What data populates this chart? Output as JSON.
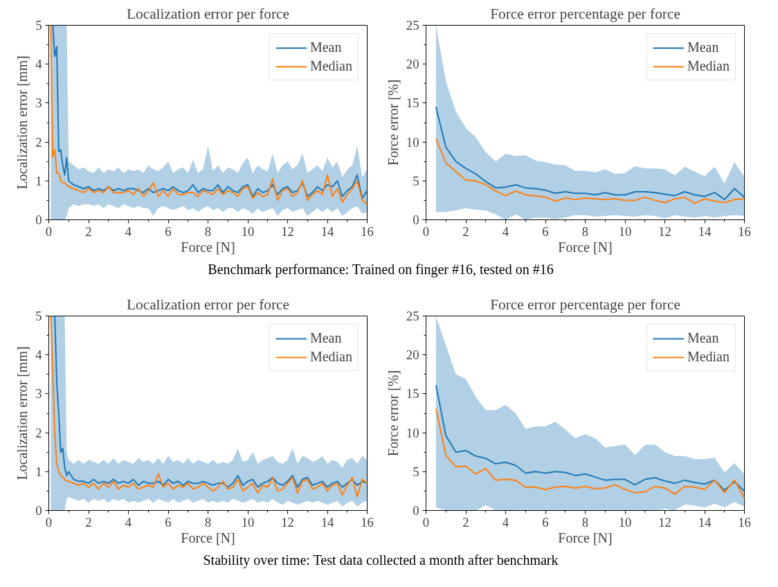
{
  "chart_data": [
    {
      "type": "line",
      "title": "Localization error per force",
      "xlabel": "Force [N]",
      "ylabel": "Localization error [mm]",
      "xlim": [
        0,
        16
      ],
      "xticks": [
        0,
        2,
        4,
        6,
        8,
        10,
        12,
        14,
        16
      ],
      "ylim": [
        0,
        5
      ],
      "yticks": [
        0,
        1,
        2,
        3,
        4,
        5
      ],
      "grid": false,
      "legend": "top right",
      "annotations": [
        "Benchmark performance: Trained on finger #16, tested on #16"
      ],
      "x": [
        0.1,
        0.2,
        0.3,
        0.4,
        0.5,
        0.6,
        0.7,
        0.8,
        0.9,
        1.0,
        1.25,
        1.5,
        1.75,
        2.0,
        2.25,
        2.5,
        2.75,
        3.0,
        3.25,
        3.5,
        3.75,
        4.0,
        4.25,
        4.5,
        4.75,
        5.0,
        5.25,
        5.5,
        5.75,
        6.0,
        6.25,
        6.5,
        6.75,
        7.0,
        7.25,
        7.5,
        7.75,
        8.0,
        8.25,
        8.5,
        8.75,
        9.0,
        9.25,
        9.5,
        9.75,
        10.0,
        10.25,
        10.5,
        10.75,
        11.0,
        11.25,
        11.5,
        11.75,
        12.0,
        12.25,
        12.5,
        12.75,
        13.0,
        13.25,
        13.5,
        13.75,
        14.0,
        14.25,
        14.5,
        14.75,
        15.0,
        15.25,
        15.5,
        15.75,
        16.0
      ],
      "series": [
        {
          "name": "Mean",
          "color": "#1f77b4",
          "values": [
            5,
            5,
            4.2,
            4.45,
            1.75,
            1.8,
            1.4,
            1.15,
            1.6,
            1.0,
            0.9,
            0.85,
            0.8,
            0.85,
            0.75,
            0.8,
            0.75,
            0.85,
            0.75,
            0.8,
            0.75,
            0.8,
            0.8,
            0.75,
            0.7,
            0.8,
            0.7,
            0.75,
            0.8,
            0.75,
            0.85,
            0.75,
            0.7,
            0.75,
            0.9,
            0.7,
            0.8,
            0.75,
            0.75,
            0.9,
            0.7,
            0.85,
            0.75,
            0.7,
            0.85,
            0.9,
            0.6,
            0.8,
            0.7,
            0.75,
            0.9,
            0.65,
            0.8,
            0.85,
            0.7,
            0.75,
            0.95,
            0.6,
            0.7,
            0.85,
            0.75,
            0.9,
            0.85,
            1.0,
            0.6,
            0.75,
            0.85,
            1.15,
            0.55,
            0.75
          ],
          "lower": [
            0,
            0,
            0,
            0,
            0,
            0,
            0,
            0,
            0.1,
            0.3,
            0.4,
            0.35,
            0.4,
            0.4,
            0.35,
            0.4,
            0.3,
            0.4,
            0.35,
            0.3,
            0.4,
            0.35,
            0.3,
            0.35,
            0.3,
            0.3,
            0.1,
            0.3,
            0.35,
            0.3,
            0.25,
            0.3,
            0.35,
            0.25,
            0.3,
            0.2,
            0.3,
            0.35,
            0.25,
            0.3,
            0.2,
            0.3,
            0.3,
            0.2,
            0.3,
            0.25,
            0.15,
            0.3,
            0.2,
            0.25,
            0.3,
            0.1,
            0.25,
            0.3,
            0.2,
            0.25,
            0.3,
            0.1,
            0.2,
            0.3,
            0.2,
            0.3,
            0.2,
            0.3,
            0.1,
            0.2,
            0.3,
            0.35,
            0.15,
            0.2
          ],
          "upper": [
            5,
            5,
            5,
            5,
            5,
            5,
            5,
            5,
            5,
            1.5,
            1.4,
            1.3,
            1.35,
            1.25,
            1.2,
            1.35,
            1.2,
            1.3,
            1.25,
            1.35,
            1.2,
            1.3,
            1.25,
            1.3,
            1.2,
            1.4,
            1.3,
            1.25,
            1.35,
            1.5,
            1.2,
            1.3,
            1.35,
            1.2,
            1.55,
            1.2,
            1.3,
            1.9,
            1.25,
            1.4,
            1.2,
            1.35,
            1.3,
            1.2,
            1.45,
            1.6,
            1.2,
            1.4,
            1.3,
            1.25,
            1.7,
            1.2,
            1.4,
            1.5,
            1.3,
            1.4,
            1.7,
            1.2,
            1.3,
            1.4,
            1.25,
            1.6,
            1.35,
            1.5,
            1.1,
            1.3,
            1.4,
            1.9,
            1.1,
            1.3
          ]
        },
        {
          "name": "Median",
          "color": "#ff7f0e",
          "values": [
            5,
            1.6,
            1.8,
            1.2,
            1.2,
            1.0,
            0.95,
            0.95,
            0.9,
            0.85,
            0.8,
            0.75,
            0.7,
            0.8,
            0.7,
            0.75,
            0.7,
            0.85,
            0.7,
            0.7,
            0.7,
            0.75,
            0.65,
            0.8,
            0.6,
            0.75,
            0.95,
            0.6,
            0.75,
            0.6,
            0.8,
            0.65,
            0.65,
            0.7,
            0.7,
            0.6,
            0.75,
            0.7,
            0.65,
            0.8,
            0.65,
            0.75,
            0.7,
            0.6,
            0.8,
            0.85,
            0.55,
            0.7,
            0.6,
            0.65,
            1.05,
            0.5,
            0.75,
            0.8,
            0.6,
            0.7,
            1.0,
            0.5,
            0.65,
            0.75,
            0.65,
            1.15,
            0.6,
            0.8,
            0.45,
            0.65,
            0.8,
            1.0,
            0.5,
            0.4
          ]
        }
      ]
    },
    {
      "type": "line",
      "title": "Force error percentage per force",
      "xlabel": "Force [N]",
      "ylabel": "Force error [%]",
      "xlim": [
        0,
        16
      ],
      "xticks": [
        0,
        2,
        4,
        6,
        8,
        10,
        12,
        14,
        16
      ],
      "ylim": [
        0,
        25
      ],
      "yticks": [
        0,
        5,
        10,
        15,
        20,
        25
      ],
      "grid": false,
      "legend": "top right",
      "x": [
        0.5,
        1.0,
        1.5,
        2.0,
        2.5,
        3.0,
        3.5,
        4.0,
        4.5,
        5.0,
        5.5,
        6.0,
        6.5,
        7.0,
        7.5,
        8.0,
        8.5,
        9.0,
        9.5,
        10.0,
        10.5,
        11.0,
        11.5,
        12.0,
        12.5,
        13.0,
        13.5,
        14.0,
        14.5,
        15.0,
        15.5,
        16.0
      ],
      "series": [
        {
          "name": "Mean",
          "color": "#1f77b4",
          "values": [
            14.5,
            9.3,
            7.5,
            6.6,
            5.9,
            4.9,
            4.1,
            4.2,
            4.5,
            4.1,
            4.0,
            3.8,
            3.4,
            3.6,
            3.4,
            3.4,
            3.2,
            3.5,
            3.2,
            3.2,
            3.6,
            3.6,
            3.5,
            3.3,
            3.1,
            3.6,
            3.2,
            3.0,
            3.5,
            2.6,
            4.0,
            2.9
          ],
          "lower": [
            1.0,
            1.0,
            1.2,
            1.5,
            1.3,
            1.2,
            0.7,
            0.0,
            0.7,
            0.0,
            0.3,
            0.3,
            0.1,
            0.3,
            0.6,
            0.6,
            0.4,
            0.5,
            0.6,
            0.5,
            0.4,
            0.6,
            0.5,
            0.2,
            0.6,
            0.4,
            0.3,
            0.5,
            0.3,
            0.5,
            0.6,
            0.5
          ],
          "upper": [
            25,
            17.8,
            13.9,
            11.8,
            10.6,
            8.7,
            7.5,
            8.5,
            8.2,
            8.3,
            7.6,
            7.4,
            7.1,
            7.0,
            6.3,
            6.3,
            6.1,
            6.5,
            5.9,
            6.0,
            6.9,
            6.6,
            6.6,
            6.5,
            5.7,
            6.8,
            6.2,
            5.6,
            6.8,
            4.7,
            7.4,
            5.5
          ]
        },
        {
          "name": "Median",
          "color": "#ff7f0e",
          "values": [
            10.4,
            7.3,
            6.2,
            5.1,
            5.0,
            4.5,
            3.7,
            3.1,
            3.7,
            3.2,
            3.1,
            2.9,
            2.4,
            2.8,
            2.6,
            2.8,
            2.7,
            2.6,
            2.7,
            2.5,
            2.5,
            2.9,
            2.5,
            2.2,
            2.7,
            2.9,
            2.1,
            2.7,
            2.4,
            2.2,
            2.6,
            2.7
          ]
        }
      ]
    },
    {
      "type": "line",
      "title": "Localization error per force",
      "xlabel": "Force [N]",
      "ylabel": "Localization error [mm]",
      "xlim": [
        0,
        16
      ],
      "xticks": [
        0,
        2,
        4,
        6,
        8,
        10,
        12,
        14,
        16
      ],
      "ylim": [
        0,
        5
      ],
      "yticks": [
        0,
        1,
        2,
        3,
        4,
        5
      ],
      "grid": false,
      "legend": "top right",
      "annotations": [
        "Stability over time: Test data collected a month after benchmark"
      ],
      "x": [
        0.1,
        0.2,
        0.3,
        0.4,
        0.5,
        0.6,
        0.7,
        0.8,
        0.9,
        1.0,
        1.25,
        1.5,
        1.75,
        2.0,
        2.25,
        2.5,
        2.75,
        3.0,
        3.25,
        3.5,
        3.75,
        4.0,
        4.25,
        4.5,
        4.75,
        5.0,
        5.25,
        5.5,
        5.75,
        6.0,
        6.25,
        6.5,
        6.75,
        7.0,
        7.25,
        7.5,
        7.75,
        8.0,
        8.25,
        8.5,
        8.75,
        9.0,
        9.25,
        9.5,
        9.75,
        10.0,
        10.25,
        10.5,
        10.75,
        11.0,
        11.25,
        11.5,
        11.75,
        12.0,
        12.25,
        12.5,
        12.75,
        13.0,
        13.25,
        13.5,
        13.75,
        14.0,
        14.25,
        14.5,
        14.75,
        15.0,
        15.25,
        15.5,
        15.75,
        16.0
      ],
      "series": [
        {
          "name": "Mean",
          "color": "#1f77b4",
          "values": [
            5,
            5,
            5,
            3.3,
            2.5,
            1.5,
            1.6,
            1.1,
            0.9,
            1.0,
            0.8,
            0.75,
            0.75,
            0.7,
            0.8,
            0.7,
            0.75,
            0.7,
            0.8,
            0.7,
            0.75,
            0.7,
            0.8,
            0.65,
            0.75,
            0.7,
            0.7,
            0.75,
            0.65,
            0.8,
            0.7,
            0.75,
            0.65,
            0.75,
            0.7,
            0.7,
            0.75,
            0.7,
            0.65,
            0.7,
            0.7,
            0.6,
            0.7,
            0.9,
            0.65,
            0.75,
            0.8,
            0.6,
            0.7,
            0.75,
            0.85,
            0.7,
            0.65,
            0.75,
            0.9,
            0.6,
            0.8,
            0.85,
            0.65,
            0.7,
            0.75,
            0.6,
            0.7,
            0.75,
            0.6,
            0.7,
            0.8,
            0.65,
            0.75,
            0.7
          ],
          "lower": [
            0,
            0,
            0,
            0,
            0,
            0,
            0,
            0,
            0.3,
            0.35,
            0.3,
            0.25,
            0.3,
            0.2,
            0.3,
            0.25,
            0.3,
            0.2,
            0.3,
            0.25,
            0.3,
            0.2,
            0.25,
            0.2,
            0.25,
            0.3,
            0.2,
            0.3,
            0.25,
            0.2,
            0.3,
            0.2,
            0.25,
            0.3,
            0.2,
            0.25,
            0.3,
            0.2,
            0.25,
            0.2,
            0.25,
            0.2,
            0.3,
            0.25,
            0.2,
            0.25,
            0.3,
            0.2,
            0.25,
            0.2,
            0.3,
            0.2,
            0.15,
            0.25,
            0.2,
            0.15,
            0.2,
            0.25,
            0.2,
            0.25,
            0.2,
            0.15,
            0.2,
            0.25,
            0.1,
            0.2,
            0.25,
            0.1,
            0.2,
            0.25
          ],
          "upper": [
            5,
            5,
            5,
            5,
            5,
            5,
            5,
            5,
            1.5,
            1.3,
            1.2,
            1.3,
            1.2,
            1.3,
            1.25,
            1.2,
            1.3,
            1.2,
            1.35,
            1.2,
            1.3,
            1.25,
            1.2,
            1.35,
            1.25,
            1.3,
            1.2,
            1.35,
            1.2,
            1.4,
            1.25,
            1.3,
            1.2,
            1.35,
            1.2,
            1.3,
            1.25,
            1.2,
            1.3,
            1.2,
            1.25,
            1.2,
            1.3,
            1.6,
            1.25,
            1.3,
            1.5,
            1.2,
            1.3,
            1.35,
            1.4,
            1.25,
            1.2,
            1.3,
            1.6,
            1.2,
            1.4,
            1.35,
            1.25,
            1.3,
            1.4,
            1.2,
            1.3,
            1.25,
            1.1,
            1.3,
            1.35,
            1.2,
            1.4,
            1.3
          ]
        },
        {
          "name": "Median",
          "color": "#ff7f0e",
          "values": [
            5,
            3.6,
            2.0,
            1.2,
            1.0,
            0.9,
            0.85,
            0.8,
            0.75,
            0.75,
            0.7,
            0.65,
            0.7,
            0.6,
            0.7,
            0.55,
            0.7,
            0.6,
            0.75,
            0.55,
            0.65,
            0.6,
            0.7,
            0.55,
            0.6,
            0.65,
            0.6,
            0.95,
            0.6,
            0.7,
            0.55,
            0.65,
            0.6,
            0.7,
            0.55,
            0.6,
            0.7,
            0.6,
            0.5,
            0.6,
            0.75,
            0.55,
            0.6,
            0.8,
            0.5,
            0.6,
            0.7,
            0.45,
            0.65,
            0.6,
            0.85,
            0.5,
            0.55,
            0.7,
            0.85,
            0.45,
            0.75,
            0.8,
            0.55,
            0.6,
            0.7,
            0.5,
            0.65,
            0.7,
            0.4,
            0.65,
            0.85,
            0.35,
            0.8,
            0.7
          ]
        }
      ]
    },
    {
      "type": "line",
      "title": "Force error percentage per force",
      "xlabel": "Force [N]",
      "ylabel": "Force error [%]",
      "xlim": [
        0,
        16
      ],
      "xticks": [
        0,
        2,
        4,
        6,
        8,
        10,
        12,
        14,
        16
      ],
      "ylim": [
        0,
        25
      ],
      "yticks": [
        0,
        5,
        10,
        15,
        20,
        25
      ],
      "grid": false,
      "legend": "top right",
      "x": [
        0.5,
        1.0,
        1.5,
        2.0,
        2.5,
        3.0,
        3.5,
        4.0,
        4.5,
        5.0,
        5.5,
        6.0,
        6.5,
        7.0,
        7.5,
        8.0,
        8.5,
        9.0,
        9.5,
        10.0,
        10.5,
        11.0,
        11.5,
        12.0,
        12.5,
        13.0,
        13.5,
        14.0,
        14.5,
        15.0,
        15.5,
        16.0
      ],
      "series": [
        {
          "name": "Mean",
          "color": "#1f77b4",
          "values": [
            16.1,
            9.6,
            7.5,
            7.7,
            7.0,
            6.7,
            6.0,
            6.2,
            5.8,
            4.8,
            5.0,
            4.8,
            5.0,
            4.9,
            4.5,
            4.7,
            4.3,
            3.9,
            4.0,
            4.0,
            3.3,
            4.0,
            4.2,
            3.8,
            3.5,
            3.9,
            3.6,
            3.4,
            3.9,
            2.6,
            3.7,
            2.5
          ],
          "lower": [
            0.4,
            0,
            0,
            0,
            0,
            0.7,
            0,
            0,
            0,
            0,
            0,
            0,
            0,
            0,
            0,
            0,
            0,
            0,
            0,
            0,
            0,
            0,
            0,
            0.2,
            0,
            0.8,
            0.6,
            0.4,
            0.9,
            0.4,
            1.1,
            0.5
          ],
          "upper": [
            25,
            21.2,
            17.5,
            16.9,
            14.6,
            12.9,
            12.9,
            13.6,
            12.5,
            10.5,
            10.8,
            10.8,
            11.4,
            10.4,
            9.3,
            9.8,
            9.3,
            8.1,
            8.3,
            8.5,
            7.1,
            8.4,
            8.5,
            7.5,
            7.0,
            7.0,
            6.6,
            6.6,
            6.8,
            4.9,
            6.1,
            4.7
          ]
        },
        {
          "name": "Median",
          "color": "#ff7f0e",
          "values": [
            13.1,
            7.1,
            5.6,
            5.7,
            4.7,
            5.4,
            3.9,
            4.0,
            3.9,
            3.0,
            3.0,
            2.7,
            3.0,
            3.1,
            2.9,
            3.1,
            2.8,
            2.9,
            3.3,
            2.7,
            2.3,
            2.4,
            3.1,
            2.9,
            2.1,
            3.1,
            3.0,
            2.7,
            3.9,
            2.3,
            3.9,
            1.6
          ]
        }
      ]
    }
  ]
}
